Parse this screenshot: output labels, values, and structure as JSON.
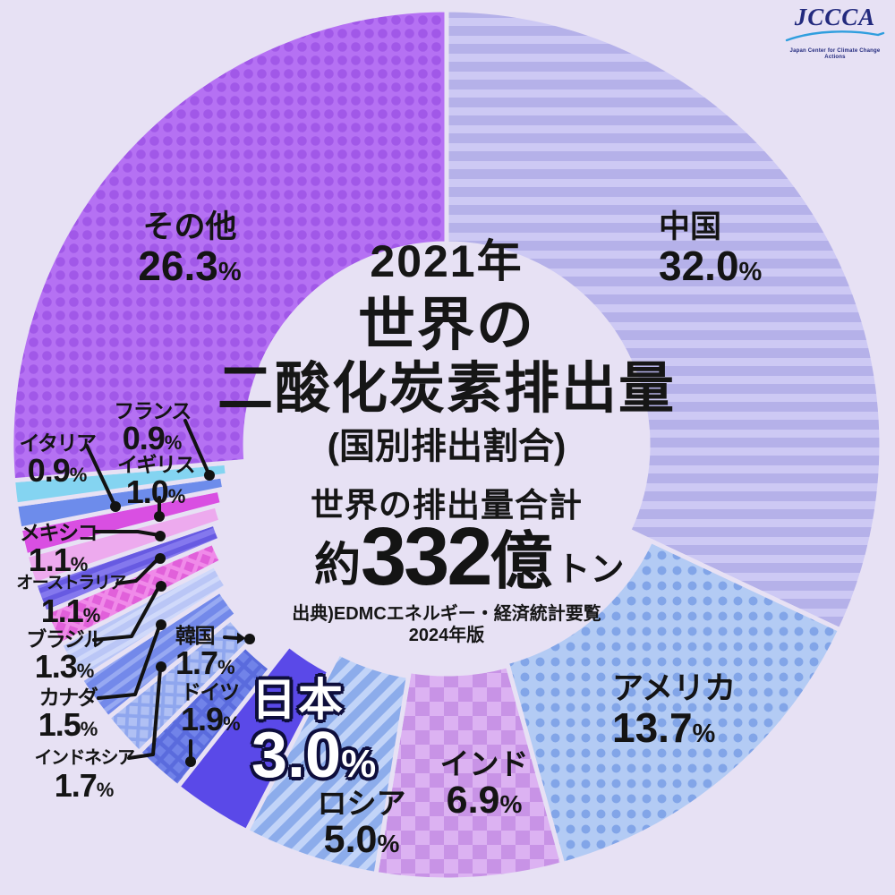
{
  "background_color": "#e7e1f4",
  "logo": {
    "text": "JCCCA",
    "caption": "Japan Center for Climate Change Actions",
    "color": "#232a7e",
    "swoosh_color": "#2f9ede"
  },
  "center": {
    "year": "2021年",
    "title1": "世界の",
    "title2": "二酸化炭素排出量",
    "subtitle": "(国別排出割合)",
    "total_heading": "世界の排出量合計",
    "total_prefix": "約",
    "total_number": "332",
    "total_oku": "億",
    "total_unit": "トン",
    "source1": "出典)EDMCエネルギー・経済統計要覧",
    "source2": "2024年版"
  },
  "chart_data": {
    "type": "pie",
    "variant": "donut",
    "title": "2021年 世界の二酸化炭素排出量(国別排出割合)",
    "total_label": "世界の排出量合計 約332億トン",
    "unit": "%",
    "start_angle_deg": 0,
    "direction": "clockwise",
    "gap_color": "#e7e1f4",
    "leader_line_color": "#121212",
    "segments": [
      {
        "key": "china",
        "label": "中国",
        "value": 32.0,
        "pattern": "hstripes",
        "base": "#b5b1e9",
        "accent": "#cdc9f4"
      },
      {
        "key": "usa",
        "label": "アメリカ",
        "value": 13.7,
        "pattern": "dots",
        "base": "#b3cbf4",
        "accent": "#82a5e8"
      },
      {
        "key": "india",
        "label": "インド",
        "value": 6.9,
        "pattern": "checker",
        "base": "#dcb2f2",
        "accent": "#c893e6"
      },
      {
        "key": "russia",
        "label": "ロシア",
        "value": 5.0,
        "pattern": "stripes",
        "base": "#8caceb",
        "accent": "#c2d4f8"
      },
      {
        "key": "japan",
        "label": "日本",
        "value": 3.0,
        "pattern": "solid",
        "base": "#5a49e8",
        "accent": "#5a49e8"
      },
      {
        "key": "germany",
        "label": "ドイツ",
        "value": 1.9,
        "pattern": "grid",
        "base": "#7183e9",
        "accent": "#5a6bdd"
      },
      {
        "key": "south-korea",
        "label": "韓国",
        "value": 1.7,
        "pattern": "grid",
        "base": "#b0c0f4",
        "accent": "#8fa6ee"
      },
      {
        "key": "indonesia",
        "label": "インドネシア",
        "value": 1.7,
        "pattern": "stripes",
        "base": "#7389ea",
        "accent": "#97a9f2"
      },
      {
        "key": "canada",
        "label": "カナダ",
        "value": 1.5,
        "pattern": "stripes",
        "base": "#bac6f6",
        "accent": "#d0d9fa"
      },
      {
        "key": "brazil",
        "label": "ブラジル",
        "value": 1.3,
        "pattern": "grid",
        "base": "#e160da",
        "accent": "#f08ae9"
      },
      {
        "key": "australia",
        "label": "オーストラリア",
        "value": 1.1,
        "pattern": "stripes",
        "base": "#8478ee",
        "accent": "#675ae2"
      },
      {
        "key": "mexico",
        "label": "メキシコ",
        "value": 1.1,
        "pattern": "solid",
        "base": "#edaaee",
        "accent": "#edaaee"
      },
      {
        "key": "uk",
        "label": "イギリス",
        "value": 1.0,
        "pattern": "solid",
        "base": "#d94fe2",
        "accent": "#d94fe2"
      },
      {
        "key": "italy",
        "label": "イタリア",
        "value": 0.9,
        "pattern": "solid",
        "base": "#6d8ceb",
        "accent": "#6d8ceb"
      },
      {
        "key": "france",
        "label": "フランス",
        "value": 0.9,
        "pattern": "solid",
        "base": "#84d4f1",
        "accent": "#84d4f1"
      },
      {
        "key": "others",
        "label": "その他",
        "value": 26.3,
        "pattern": "dots",
        "base": "#b571f3",
        "accent": "#a158e8"
      }
    ]
  }
}
